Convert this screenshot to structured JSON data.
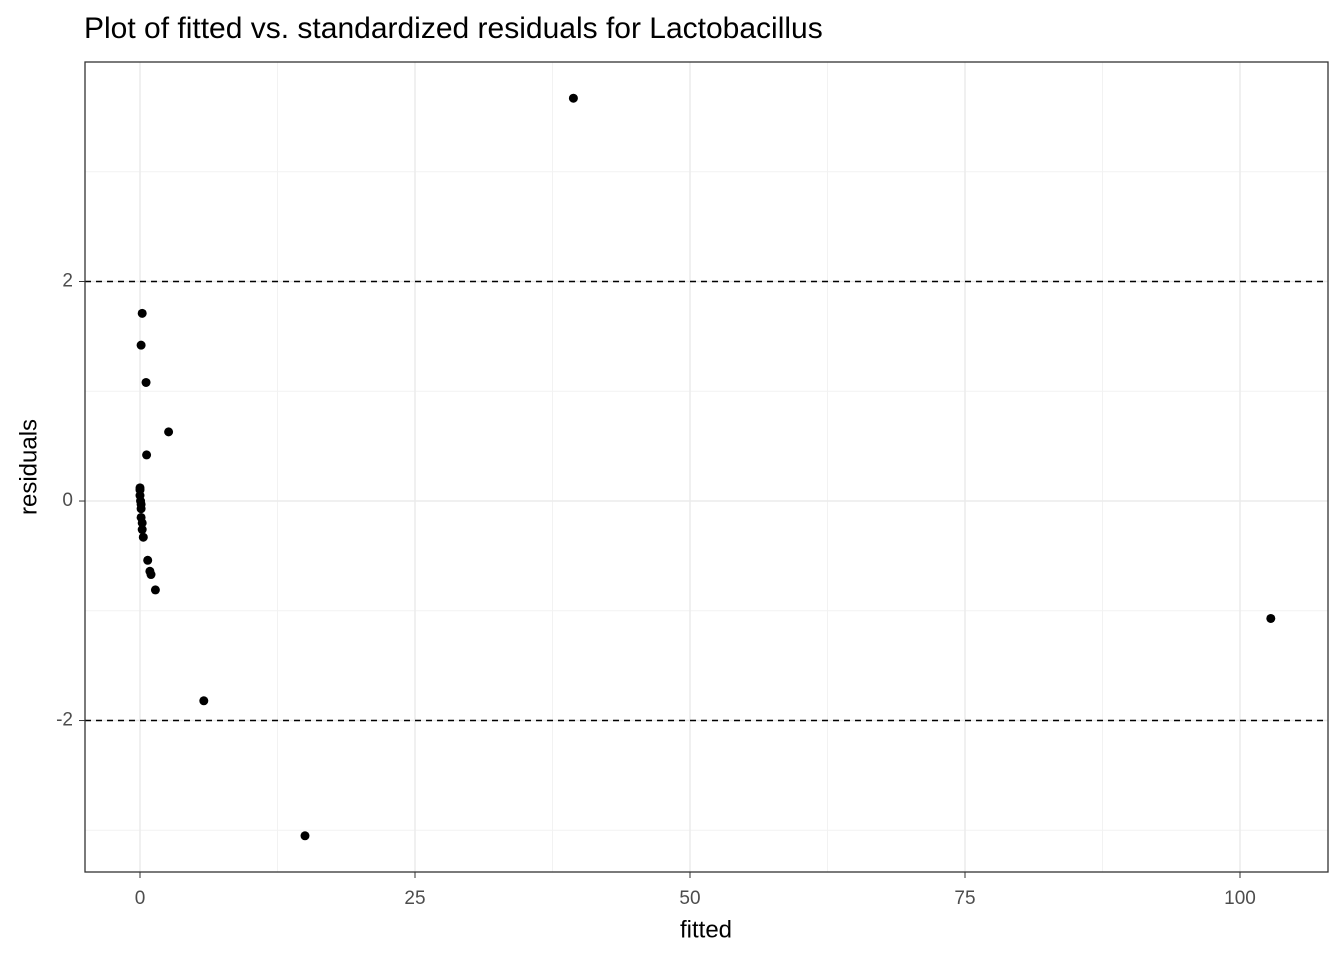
{
  "chart_data": {
    "type": "scatter",
    "title": "Plot of fitted vs. standardized residuals for Lactobacillus",
    "x_label": "fitted",
    "y_label": "residuals",
    "series": [
      {
        "name": "residuals",
        "color": "#000000",
        "x": [
          39.4,
          0.2,
          0.1,
          0.55,
          2.6,
          0.6,
          0.0,
          0.0,
          0.0,
          0.05,
          0.1,
          0.1,
          0.1,
          0.2,
          0.2,
          0.3,
          0.7,
          0.9,
          1.0,
          1.4,
          5.8,
          15.0,
          102.8
        ],
        "values": [
          3.67,
          1.71,
          1.42,
          1.08,
          0.63,
          0.42,
          0.12,
          0.1,
          0.05,
          0.0,
          -0.03,
          -0.07,
          -0.15,
          -0.2,
          -0.26,
          -0.33,
          -0.54,
          -0.64,
          -0.67,
          -0.81,
          -1.82,
          -3.05,
          -1.07
        ]
      }
    ],
    "xlim": [
      -5,
      108
    ],
    "ylim": [
      -3.38,
      4.0
    ],
    "xticks": [
      0,
      25,
      50,
      75,
      100
    ],
    "yticks": [
      -2,
      0,
      2
    ],
    "minor_xticks": [
      12.5,
      37.5,
      62.5,
      87.5
    ],
    "minor_yticks": [
      -3,
      -1,
      1,
      3
    ],
    "hlines": [
      -2,
      2
    ],
    "hline_style": "dashed",
    "grid": true
  }
}
